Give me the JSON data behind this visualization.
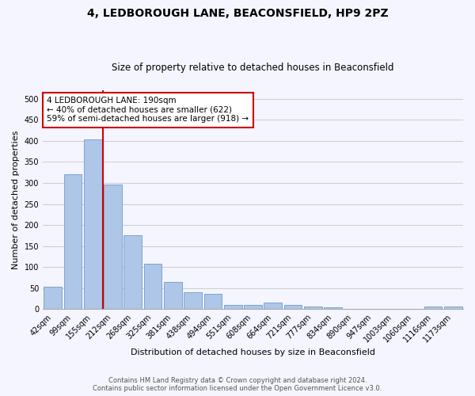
{
  "title": "4, LEDBOROUGH LANE, BEACONSFIELD, HP9 2PZ",
  "subtitle": "Size of property relative to detached houses in Beaconsfield",
  "xlabel": "Distribution of detached houses by size in Beaconsfield",
  "ylabel": "Number of detached properties",
  "footer_line1": "Contains HM Land Registry data © Crown copyright and database right 2024.",
  "footer_line2": "Contains public sector information licensed under the Open Government Licence v3.0.",
  "categories": [
    "42sqm",
    "99sqm",
    "155sqm",
    "212sqm",
    "268sqm",
    "325sqm",
    "381sqm",
    "438sqm",
    "494sqm",
    "551sqm",
    "608sqm",
    "664sqm",
    "721sqm",
    "777sqm",
    "834sqm",
    "890sqm",
    "947sqm",
    "1003sqm",
    "1060sqm",
    "1116sqm",
    "1173sqm"
  ],
  "values": [
    53,
    320,
    403,
    297,
    176,
    108,
    65,
    40,
    36,
    11,
    10,
    15,
    10,
    7,
    4,
    1,
    1,
    1,
    0,
    6,
    6
  ],
  "bar_color": "#aec6e8",
  "bar_edge_color": "#5a8fc0",
  "vline_color": "#cc0000",
  "annotation_text": "4 LEDBOROUGH LANE: 190sqm\n← 40% of detached houses are smaller (622)\n59% of semi-detached houses are larger (918) →",
  "annotation_box_color": "#ffffff",
  "annotation_box_edge": "#cc0000",
  "ylim": [
    0,
    520
  ],
  "yticks": [
    0,
    50,
    100,
    150,
    200,
    250,
    300,
    350,
    400,
    450,
    500
  ],
  "grid_color": "#cccccc",
  "bg_color": "#f5f5ff",
  "title_fontsize": 10,
  "subtitle_fontsize": 8.5,
  "xlabel_fontsize": 8,
  "ylabel_fontsize": 8,
  "tick_fontsize": 7,
  "footer_fontsize": 6
}
